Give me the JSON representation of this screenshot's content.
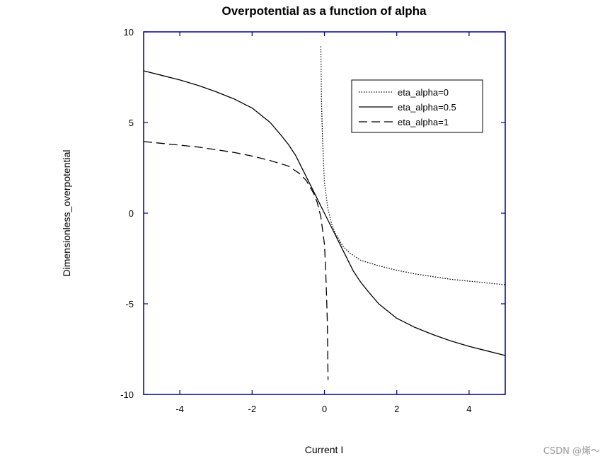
{
  "chart_data": {
    "type": "line",
    "title": "Overpotential as a function of alpha",
    "xlabel": "Current I",
    "ylabel": "Dimensionless_overpotential",
    "xlim": [
      -5,
      5
    ],
    "ylim": [
      -10,
      10
    ],
    "x_ticks": [
      -4,
      -2,
      0,
      2,
      4
    ],
    "y_ticks": [
      -10,
      -5,
      0,
      5,
      10
    ],
    "x_tick_labels": [
      "-4",
      "-2",
      "0",
      "2",
      "4"
    ],
    "y_tick_labels": [
      "-10",
      "-5",
      "0",
      "5",
      "10"
    ],
    "grid": false,
    "frame_color": "#00008b",
    "legend_position": "top-right",
    "series": [
      {
        "name": "eta_alpha=0",
        "line_style": "dotted",
        "color": "#000000",
        "x": [
          -0.1,
          -0.08,
          -0.05,
          -0.02,
          0.0,
          0.05,
          0.1,
          0.2,
          0.3,
          0.5,
          0.7,
          1.0,
          1.5,
          2.0,
          2.5,
          3.0,
          3.5,
          4.0,
          4.5,
          5.0
        ],
        "y": [
          9.2,
          6.0,
          4.0,
          2.5,
          1.7,
          0.9,
          0.2,
          -0.6,
          -1.1,
          -1.8,
          -2.2,
          -2.6,
          -2.9,
          -3.15,
          -3.35,
          -3.5,
          -3.65,
          -3.75,
          -3.85,
          -3.95
        ]
      },
      {
        "name": "eta_alpha=0.5",
        "line_style": "solid",
        "color": "#000000",
        "x": [
          -5,
          -4.5,
          -4,
          -3.5,
          -3,
          -2.5,
          -2,
          -1.5,
          -1.2,
          -1.0,
          -0.8,
          -0.6,
          -0.4,
          -0.2,
          0.0,
          0.2,
          0.4,
          0.6,
          0.8,
          1.0,
          1.2,
          1.5,
          2.0,
          2.5,
          3.0,
          3.5,
          4.0,
          4.5,
          5.0
        ],
        "y": [
          7.85,
          7.6,
          7.35,
          7.05,
          6.7,
          6.3,
          5.8,
          5.0,
          4.3,
          3.8,
          3.2,
          2.4,
          1.6,
          0.8,
          0.0,
          -0.8,
          -1.6,
          -2.4,
          -3.2,
          -3.8,
          -4.3,
          -5.0,
          -5.8,
          -6.3,
          -6.7,
          -7.05,
          -7.35,
          -7.6,
          -7.85
        ]
      },
      {
        "name": "eta_alpha=1",
        "line_style": "dashed",
        "color": "#000000",
        "x": [
          -5,
          -4.5,
          -4,
          -3.5,
          -3,
          -2.5,
          -2,
          -1.5,
          -1.0,
          -0.7,
          -0.5,
          -0.3,
          -0.2,
          -0.1,
          0.0,
          0.02,
          0.05,
          0.08,
          0.1
        ],
        "y": [
          3.95,
          3.85,
          3.75,
          3.65,
          3.5,
          3.35,
          3.15,
          2.9,
          2.6,
          2.2,
          1.8,
          1.1,
          0.6,
          -0.2,
          -1.7,
          -2.5,
          -4.0,
          -6.0,
          -9.2
        ]
      }
    ]
  },
  "watermark": "CSDN @烯～"
}
